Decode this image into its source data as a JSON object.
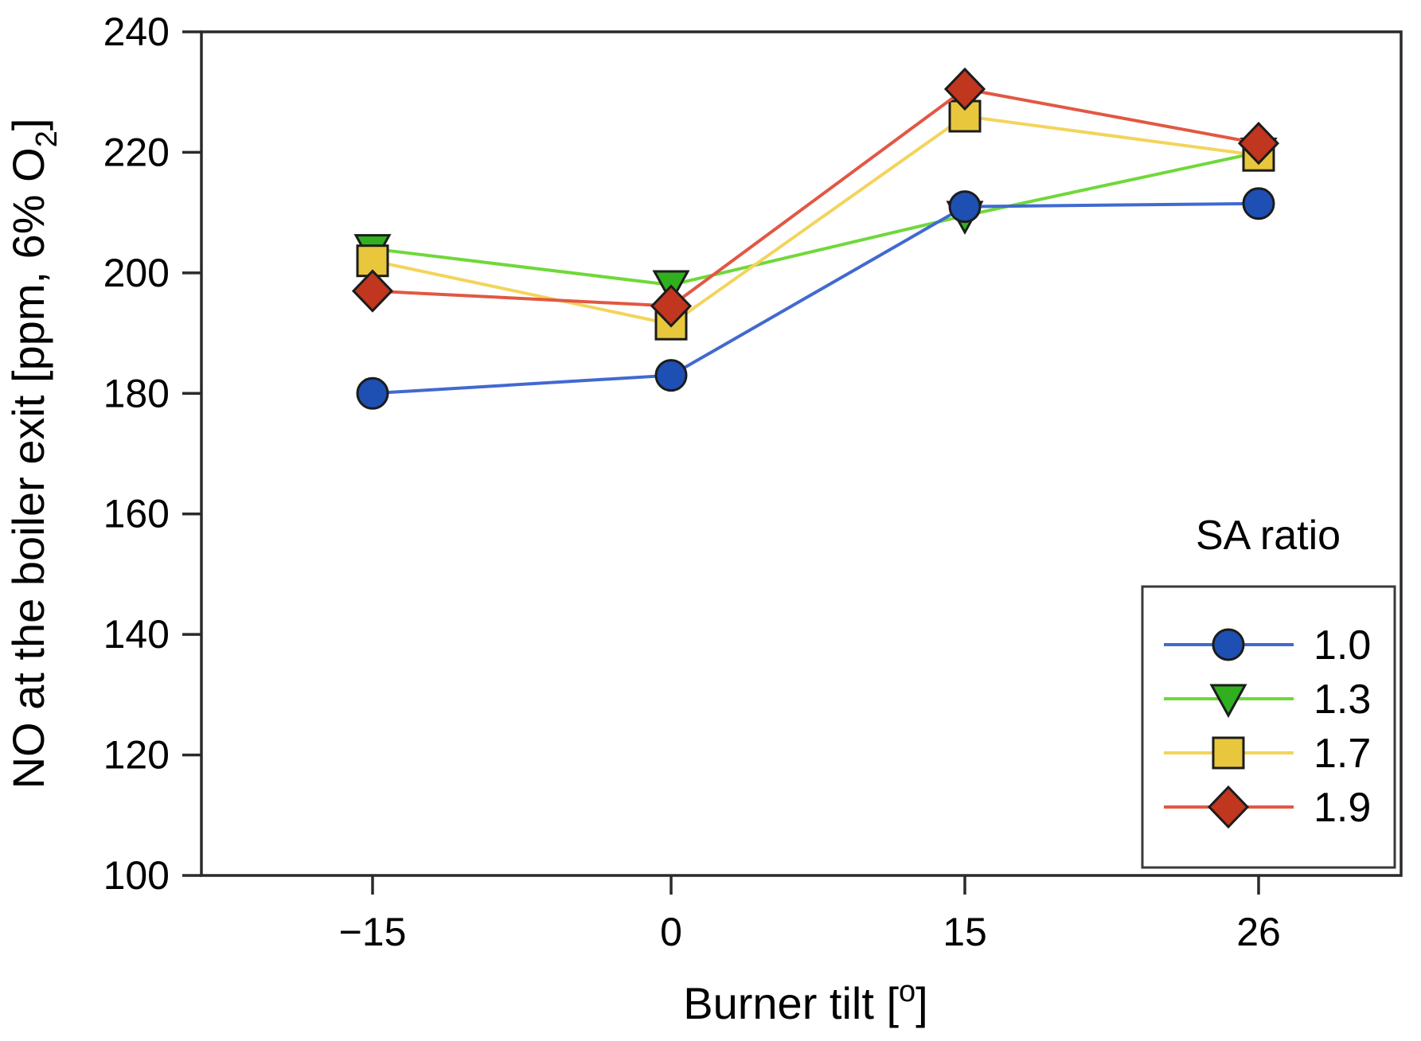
{
  "figure": {
    "background": "#ffffff",
    "frame_color": "#2a2a2a",
    "text_color": "#000000"
  },
  "chart_data": {
    "type": "line",
    "title": "",
    "xlabel": {
      "text": "Burner tilt [",
      "superscript": "o",
      "suffix": "]"
    },
    "ylabel": {
      "text": "NO at the boiler exit [ppm, 6% O",
      "subscript": "2",
      "suffix": "]"
    },
    "x_categories": [
      -15,
      0,
      15,
      26
    ],
    "x_tick_labels": [
      "−15",
      "0",
      "15",
      "26"
    ],
    "ylim": [
      100,
      240
    ],
    "yticks": [
      100,
      120,
      140,
      160,
      180,
      200,
      220,
      240
    ],
    "grid": false,
    "marker_outline": "#1c1c1c",
    "legend": {
      "title": "SA ratio",
      "position": "lower right",
      "entries": [
        "1.0",
        "1.3",
        "1.7",
        "1.9"
      ]
    },
    "series": [
      {
        "name": "1.0",
        "marker": "circle",
        "line_color": "#4169d0",
        "fill_color": "#1e4fb2",
        "values": [
          180,
          183,
          211,
          211.5
        ]
      },
      {
        "name": "1.3",
        "marker": "triangle-down",
        "line_color": "#70d83a",
        "fill_color": "#30b01e",
        "values": [
          204,
          198,
          209.5,
          220
        ]
      },
      {
        "name": "1.7",
        "marker": "square",
        "line_color": "#f3d45c",
        "fill_color": "#e8c73d",
        "values": [
          202,
          191.5,
          226,
          219.5
        ]
      },
      {
        "name": "1.9",
        "marker": "diamond",
        "line_color": "#e15843",
        "fill_color": "#c0361f",
        "values": [
          197,
          194.5,
          230.5,
          221.5
        ]
      }
    ]
  }
}
